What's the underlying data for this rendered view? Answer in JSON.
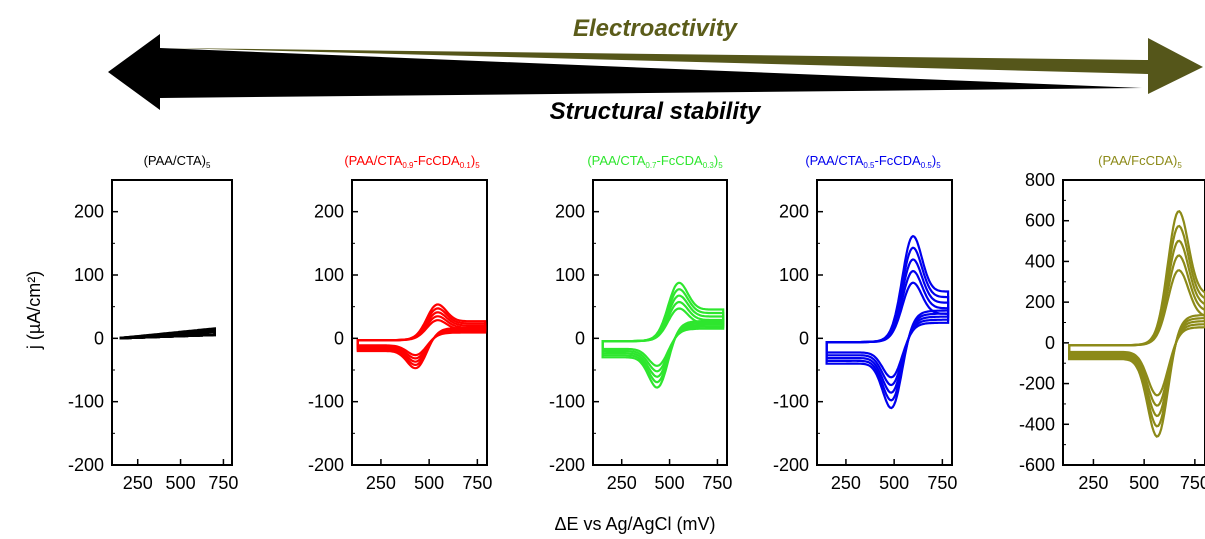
{
  "header": {
    "top_label": "Electroactivity",
    "bottom_label": "Structural stability",
    "top_color": "#5b5c1a",
    "bottom_color": "#000000"
  },
  "x_axis_label": "ΔE vs Ag/AgCl (mV)",
  "y_axis_label": "j (µA/cm²)",
  "chart_data": [
    {
      "type": "line",
      "title": "(PAA/CTA)5",
      "color": "#000000",
      "xlim": [
        100,
        800
      ],
      "ylim": [
        -200,
        250
      ],
      "xticks": [
        250,
        500,
        750
      ],
      "yticks": [
        200,
        100,
        0,
        -100,
        -200
      ],
      "cycles": 5,
      "cv": {
        "e_start": 150,
        "e_end": 700,
        "peak_e": 0,
        "peak_ox": 0,
        "peak_red": 0,
        "base_ox": 15,
        "base_red": 5
      }
    },
    {
      "type": "line",
      "title": "(PAA/CTA0.9-FcCDA0.1)5",
      "color": "#ff0000",
      "xlim": [
        100,
        800
      ],
      "ylim": [
        -200,
        250
      ],
      "xticks": [
        250,
        500,
        750
      ],
      "yticks": [
        200,
        100,
        0,
        -100,
        -200
      ],
      "cycles": 5,
      "cv": {
        "e_start": 130,
        "e_end": 790,
        "peak_e": 535,
        "peak_ox": 63,
        "peak_red": -55,
        "base_ox": 30,
        "base_red": -20
      }
    },
    {
      "type": "line",
      "title": "(PAA/CTA0.7-FcCDA0.3)5",
      "color": "#2ee62e",
      "xlim": [
        100,
        800
      ],
      "ylim": [
        -200,
        250
      ],
      "xticks": [
        250,
        500,
        750
      ],
      "yticks": [
        200,
        100,
        0,
        -100,
        -200
      ],
      "cycles": 5,
      "cv": {
        "e_start": 150,
        "e_end": 780,
        "peak_e": 540,
        "peak_ox": 103,
        "peak_red": -90,
        "base_ox": 50,
        "base_red": -30
      }
    },
    {
      "type": "line",
      "title": "(PAA/CTA0.5-FcCDA0.5)5",
      "color": "#0000ee",
      "xlim": [
        100,
        800
      ],
      "ylim": [
        -200,
        250
      ],
      "xticks": [
        250,
        500,
        750
      ],
      "yticks": [
        200,
        100,
        0,
        -100,
        -200
      ],
      "cycles": 5,
      "cv": {
        "e_start": 150,
        "e_end": 780,
        "peak_e": 590,
        "peak_ox": 185,
        "peak_red": -128,
        "base_ox": 80,
        "base_red": -40
      }
    },
    {
      "type": "line",
      "title": "(PAA/FcCDA)5",
      "color": "#8c8a18",
      "xlim": [
        100,
        800
      ],
      "ylim": [
        -600,
        800
      ],
      "xticks": [
        250,
        500,
        750
      ],
      "yticks": [
        800,
        600,
        400,
        200,
        0,
        -200,
        -400,
        -600
      ],
      "cycles": 5,
      "cv": {
        "e_start": 130,
        "e_end": 800,
        "peak_e": 665,
        "peak_ox": 715,
        "peak_red": -510,
        "base_ox": 250,
        "base_red": -80
      }
    }
  ]
}
